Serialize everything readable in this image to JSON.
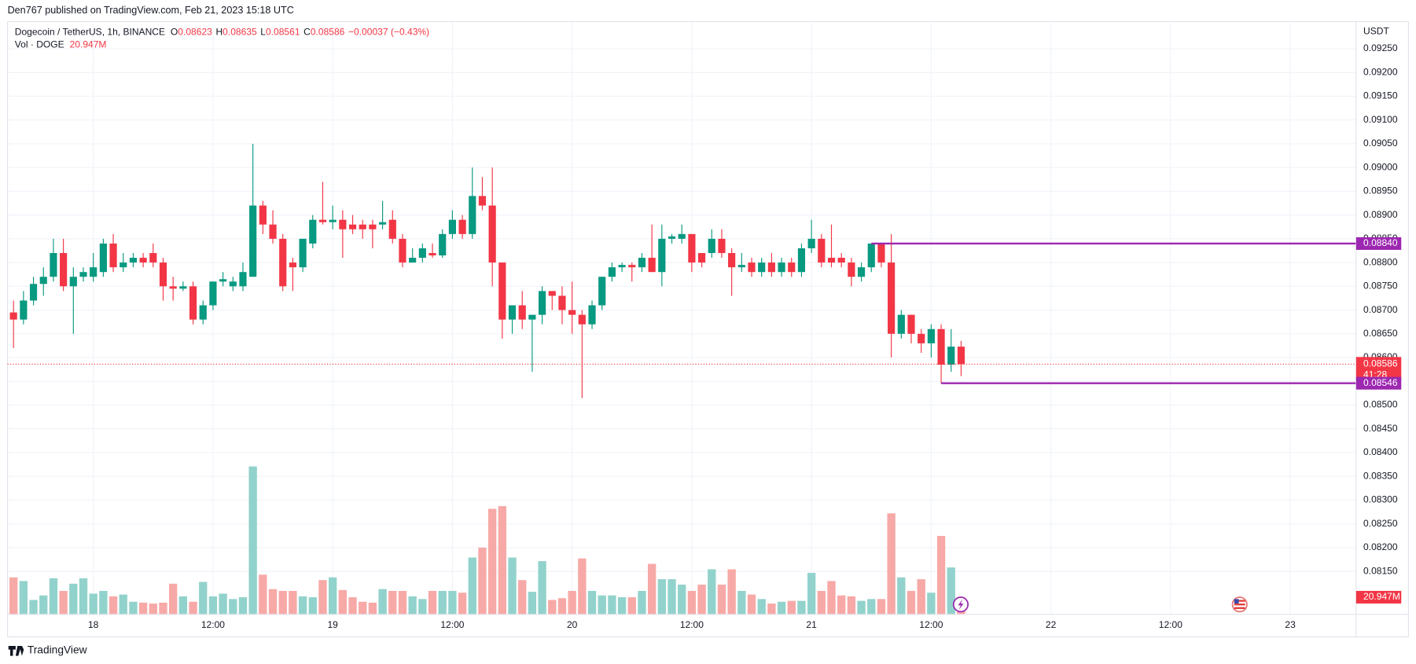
{
  "header": "Den767 published on TradingView.com, Feb 21, 2023 15:18 UTC",
  "footer": "TradingView",
  "chart_data": {
    "type": "candlestick",
    "symbol": "Dogecoin / TetherUS, 1h, BINANCE",
    "ohlc": [
      {
        "key": "O",
        "text": "0.08623"
      },
      {
        "key": "H",
        "text": "0.08635"
      },
      {
        "key": "L",
        "text": "0.08561"
      },
      {
        "key": "C",
        "text": "0.08586"
      }
    ],
    "change": "−0.00037 (−0.43%)",
    "volume_title": "Vol · DOGE",
    "volume_text": "20.947M",
    "currency": "USDT",
    "colors": {
      "up": "#089981",
      "down": "#f23645",
      "up_volume": "#92d2cc",
      "down_volume": "#f7a9a7",
      "level": "#9c27b0",
      "grid": "#f0f3fa"
    },
    "x": [
      -8,
      -7,
      -6,
      -5,
      -4,
      -3,
      -2,
      -1,
      0,
      1,
      2,
      3,
      4,
      5,
      6,
      7,
      8,
      9,
      10,
      11,
      12,
      13,
      14,
      15,
      16,
      17,
      18,
      19,
      20,
      21,
      22,
      23,
      24,
      25,
      26,
      27,
      28,
      29,
      30,
      31,
      32,
      33,
      34,
      35,
      36,
      37,
      38,
      39,
      40,
      41,
      42,
      43,
      44,
      45,
      46,
      47,
      48,
      49,
      50,
      51,
      52,
      53,
      54,
      55,
      56,
      57,
      58,
      59,
      60,
      61,
      62,
      63,
      64,
      65,
      66,
      67,
      68,
      69,
      70,
      71,
      72,
      73,
      74,
      75,
      76,
      77,
      78,
      79,
      80,
      81,
      82,
      83,
      84,
      85,
      86,
      87
    ],
    "open": [
      0.08695,
      0.0868,
      0.0872,
      0.08755,
      0.0877,
      0.0882,
      0.0875,
      0.0877,
      0.0877,
      0.0878,
      0.0884,
      0.0879,
      0.088,
      0.0881,
      0.0882,
      0.088,
      0.0875,
      0.08745,
      0.0875,
      0.0868,
      0.0871,
      0.0876,
      0.0875,
      0.0875,
      0.0877,
      0.0892,
      0.0888,
      0.0885,
      0.088,
      0.0879,
      0.0884,
      0.0889,
      0.08885,
      0.0889,
      0.0888,
      0.0888,
      0.0888,
      0.0888,
      0.0889,
      0.0885,
      0.088,
      0.0881,
      0.0882,
      0.08815,
      0.0886,
      0.0889,
      0.0886,
      0.0894,
      0.0892,
      0.088,
      0.0868,
      0.0871,
      0.0868,
      0.0869,
      0.0874,
      0.0873,
      0.087,
      0.0869,
      0.0867,
      0.0871,
      0.0877,
      0.0879,
      0.08795,
      0.0879,
      0.0881,
      0.0878,
      0.0885,
      0.0885,
      0.0886,
      0.0882,
      0.0882,
      0.0885,
      0.0882,
      0.0879,
      0.088,
      0.0878,
      0.088,
      0.0878,
      0.088,
      0.0878,
      0.0883,
      0.0885,
      0.0881,
      0.0881,
      0.088,
      0.0877,
      0.0879,
      0.0884,
      0.088,
      0.0865,
      0.0869,
      0.0865,
      0.0863,
      0.0866,
      0.08585,
      0.08623
    ],
    "high": [
      0.0872,
      0.0874,
      0.0877,
      0.0879,
      0.0885,
      0.0885,
      0.0879,
      0.0879,
      0.0882,
      0.0885,
      0.0886,
      0.0882,
      0.0882,
      0.0882,
      0.0884,
      0.0881,
      0.0877,
      0.0876,
      0.0876,
      0.0872,
      0.0876,
      0.0878,
      0.0877,
      0.088,
      0.0905,
      0.0893,
      0.0891,
      0.0886,
      0.0881,
      0.0885,
      0.089,
      0.0897,
      0.0892,
      0.0891,
      0.089,
      0.0889,
      0.0889,
      0.0893,
      0.0891,
      0.0886,
      0.0883,
      0.0884,
      0.0884,
      0.0887,
      0.0891,
      0.089,
      0.09,
      0.0898,
      0.09,
      0.088,
      0.0871,
      0.0874,
      0.0869,
      0.0875,
      0.0874,
      0.0875,
      0.0876,
      0.087,
      0.0872,
      0.0877,
      0.088,
      0.088,
      0.088,
      0.0882,
      0.0888,
      0.0888,
      0.0886,
      0.0888,
      0.0886,
      0.0882,
      0.0887,
      0.0887,
      0.0883,
      0.0882,
      0.0881,
      0.0881,
      0.0882,
      0.0881,
      0.0881,
      0.0884,
      0.0889,
      0.0886,
      0.0888,
      0.0882,
      0.0881,
      0.088,
      0.0884,
      0.0884,
      0.0886,
      0.087,
      0.0869,
      0.0866,
      0.0867,
      0.0867,
      0.0866,
      0.08635
    ],
    "low": [
      0.0862,
      0.0867,
      0.0871,
      0.0873,
      0.0876,
      0.0874,
      0.0865,
      0.0876,
      0.0876,
      0.0877,
      0.0878,
      0.0878,
      0.0879,
      0.0879,
      0.0879,
      0.0872,
      0.0872,
      0.0874,
      0.0867,
      0.0867,
      0.087,
      0.0875,
      0.0874,
      0.0874,
      0.0877,
      0.0886,
      0.0884,
      0.0874,
      0.0874,
      0.0878,
      0.0883,
      0.0888,
      0.0887,
      0.0881,
      0.0886,
      0.0885,
      0.0883,
      0.0887,
      0.0884,
      0.0879,
      0.088,
      0.088,
      0.0881,
      0.0881,
      0.0885,
      0.0885,
      0.0885,
      0.0891,
      0.0875,
      0.0864,
      0.0865,
      0.0866,
      0.0857,
      0.0867,
      0.087,
      0.0867,
      0.0865,
      0.08515,
      0.0866,
      0.087,
      0.0876,
      0.0878,
      0.0876,
      0.0878,
      0.0878,
      0.0875,
      0.0884,
      0.0884,
      0.0878,
      0.0879,
      0.0881,
      0.0881,
      0.0873,
      0.0878,
      0.0877,
      0.0877,
      0.0877,
      0.0877,
      0.0877,
      0.0877,
      0.0882,
      0.0879,
      0.0879,
      0.0879,
      0.0875,
      0.0876,
      0.0878,
      0.0879,
      0.086,
      0.0864,
      0.0863,
      0.0861,
      0.086,
      0.08546,
      0.0857,
      0.08561
    ],
    "close": [
      0.0868,
      0.0872,
      0.08755,
      0.0877,
      0.0882,
      0.0875,
      0.0877,
      0.0878,
      0.0879,
      0.0884,
      0.0879,
      0.088,
      0.0881,
      0.088,
      0.088,
      0.0875,
      0.08745,
      0.0875,
      0.0868,
      0.0871,
      0.0876,
      0.08765,
      0.0876,
      0.0878,
      0.0892,
      0.0888,
      0.0885,
      0.0875,
      0.0879,
      0.0885,
      0.0889,
      0.08885,
      0.0889,
      0.0887,
      0.0887,
      0.0887,
      0.0887,
      0.08885,
      0.0885,
      0.088,
      0.0881,
      0.0883,
      0.08815,
      0.0886,
      0.0889,
      0.0886,
      0.0894,
      0.0892,
      0.088,
      0.0868,
      0.0871,
      0.0868,
      0.0869,
      0.0874,
      0.0873,
      0.087,
      0.0869,
      0.0867,
      0.0871,
      0.0877,
      0.0879,
      0.08795,
      0.0879,
      0.0881,
      0.0878,
      0.0885,
      0.08855,
      0.0886,
      0.088,
      0.088,
      0.0885,
      0.0882,
      0.0879,
      0.08795,
      0.0878,
      0.088,
      0.0878,
      0.088,
      0.0878,
      0.0883,
      0.0885,
      0.088,
      0.088,
      0.088,
      0.0877,
      0.0879,
      0.0884,
      0.088,
      0.0865,
      0.0869,
      0.0865,
      0.0863,
      0.0866,
      0.08585,
      0.08623,
      0.08586
    ],
    "volume": [
      45.1,
      40.7,
      17.6,
      23.1,
      44.0,
      28.6,
      37.4,
      44.0,
      25.3,
      28.6,
      22.0,
      24.2,
      15.4,
      14.3,
      13.2,
      14.3,
      37.4,
      22.0,
      15.4,
      39.6,
      22.0,
      25.3,
      18.7,
      20.9,
      180.4,
      48.4,
      30.8,
      28.6,
      28.6,
      22.0,
      20.9,
      41.8,
      45.1,
      29.7,
      20.9,
      15.4,
      14.3,
      30.8,
      28.6,
      28.6,
      22.0,
      18.7,
      28.6,
      28.6,
      28.6,
      26.4,
      69.3,
      81.4,
      128.7,
      132.0,
      69.3,
      41.8,
      27.5,
      64.9,
      17.6,
      19.8,
      28.6,
      68.2,
      28.6,
      23.1,
      23.1,
      20.9,
      20.9,
      28.6,
      61.6,
      42.9,
      42.9,
      36.3,
      28.6,
      36.3,
      55.0,
      36.3,
      55.0,
      28.6,
      24.2,
      18.7,
      13.2,
      15.4,
      16.5,
      16.5,
      50.6,
      28.6,
      40.7,
      23.1,
      22.0,
      16.5,
      18.7,
      18.7,
      123.2,
      45.1,
      28.6,
      42.9,
      26.4,
      95.7,
      57.2,
      20.947
    ],
    "xlim": [
      -8.6,
      126.6
    ],
    "xticks": [
      {
        "value": 0,
        "label": "18"
      },
      {
        "value": 12,
        "label": "12:00"
      },
      {
        "value": 24,
        "label": "19"
      },
      {
        "value": 36,
        "label": "12:00"
      },
      {
        "value": 48,
        "label": "20"
      },
      {
        "value": 60,
        "label": "12:00"
      },
      {
        "value": 72,
        "label": "21"
      },
      {
        "value": 84,
        "label": "12:00"
      },
      {
        "value": 96,
        "label": "22"
      },
      {
        "value": 108,
        "label": "12:00"
      },
      {
        "value": 120,
        "label": "23"
      }
    ],
    "ylim": [
      0.080595,
      0.093013
    ],
    "yticks": [
      {
        "value": 0.0925,
        "label": "0.09250"
      },
      {
        "value": 0.092,
        "label": "0.09200"
      },
      {
        "value": 0.0915,
        "label": "0.09150"
      },
      {
        "value": 0.091,
        "label": "0.09100"
      },
      {
        "value": 0.0905,
        "label": "0.09050"
      },
      {
        "value": 0.09,
        "label": "0.09000"
      },
      {
        "value": 0.0895,
        "label": "0.08950"
      },
      {
        "value": 0.089,
        "label": "0.08900"
      },
      {
        "value": 0.0885,
        "label": "0.08850"
      },
      {
        "value": 0.088,
        "label": "0.08800"
      },
      {
        "value": 0.0875,
        "label": "0.08750"
      },
      {
        "value": 0.087,
        "label": "0.08700"
      },
      {
        "value": 0.0865,
        "label": "0.08650"
      },
      {
        "value": 0.086,
        "label": "0.08600"
      },
      {
        "value": 0.0855,
        "label": "0.08550"
      },
      {
        "value": 0.085,
        "label": "0.08500"
      },
      {
        "value": 0.0845,
        "label": "0.08450"
      },
      {
        "value": 0.084,
        "label": "0.08400"
      },
      {
        "value": 0.0835,
        "label": "0.08350"
      },
      {
        "value": 0.083,
        "label": "0.08300"
      },
      {
        "value": 0.0825,
        "label": "0.08250"
      },
      {
        "value": 0.082,
        "label": "0.08200"
      },
      {
        "value": 0.0815,
        "label": "0.08150"
      }
    ],
    "grid": true,
    "levels": [
      {
        "value": 0.0884,
        "label": "0.08840",
        "start": 78
      },
      {
        "value": 0.08546,
        "label": "0.08546",
        "start": 85
      }
    ],
    "last_price": {
      "value": 0.08586,
      "label": "0.08586",
      "countdown": "41:28"
    }
  }
}
